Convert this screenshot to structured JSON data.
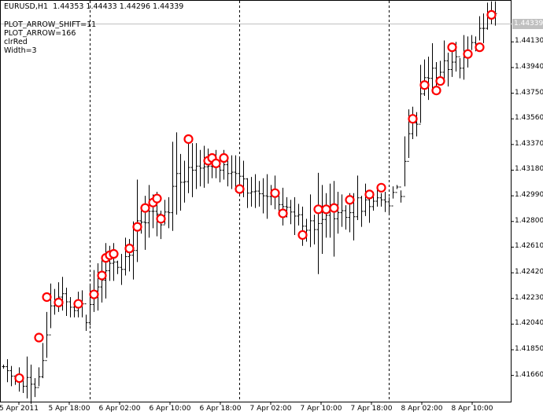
{
  "chart": {
    "symbol": "EURUSD,H1",
    "ohlc": "1.44353 1.44433 1.44296 1.44339",
    "current_price": "1.44339",
    "params": [
      "PLOT_ARROW_SHIFT=11",
      "PLOT_ARROW=166",
      "clrRed",
      "Width=3"
    ],
    "colors": {
      "background": "#ffffff",
      "bars": "#000000",
      "arrows": "#ff0000",
      "grid": "#000000",
      "price_line": "#c0c0c0"
    }
  },
  "chart_data": {
    "type": "ohlc",
    "title": "EURUSD,H1",
    "y_ticks": [
      "1.44130",
      "1.43940",
      "1.43750",
      "1.43560",
      "1.43370",
      "1.43180",
      "1.42990",
      "1.42800",
      "1.42610",
      "1.42420",
      "1.42230",
      "1.42040",
      "1.41850",
      "1.41660"
    ],
    "x_ticks": [
      "5 Apr 2011",
      "5 Apr 18:00",
      "6 Apr 02:00",
      "6 Apr 10:00",
      "6 Apr 18:00",
      "7 Apr 02:00",
      "7 Apr 10:00",
      "7 Apr 18:00",
      "8 Apr 02:00",
      "8 Apr 10:00"
    ],
    "ylim": [
      1.4146,
      1.4444
    ],
    "day_separators": [
      "6 Apr 2011",
      "7 Apr 2011",
      "8 Apr 2011"
    ],
    "bars_high": [
      1.4174,
      1.4178,
      1.4173,
      1.4166,
      1.4172,
      1.4163,
      1.418,
      1.4174,
      1.4164,
      1.4172,
      1.419,
      1.4213,
      1.4234,
      1.423,
      1.4235,
      1.4239,
      1.4231,
      1.4224,
      1.4219,
      1.4228,
      1.4229,
      1.4211,
      1.4234,
      1.4244,
      1.4249,
      1.4253,
      1.4264,
      1.4262,
      1.4264,
      1.4251,
      1.4256,
      1.4268,
      1.4267,
      1.428,
      1.4311,
      1.4288,
      1.4299,
      1.4307,
      1.43,
      1.4302,
      1.4288,
      1.4296,
      1.4298,
      1.4339,
      1.4346,
      1.433,
      1.4325,
      1.4339,
      1.4338,
      1.4338,
      1.4333,
      1.4336,
      1.4334,
      1.4329,
      1.4333,
      1.4327,
      1.4333,
      1.4325,
      1.4329,
      1.4329,
      1.4327,
      1.4325,
      1.4312,
      1.4313,
      1.4315,
      1.431,
      1.4312,
      1.4315,
      1.4307,
      1.4314,
      1.4299,
      1.4305,
      1.4298,
      1.4296,
      1.4298,
      1.4293,
      1.4291,
      1.4282,
      1.43,
      1.4285,
      1.4316,
      1.4307,
      1.4301,
      1.4308,
      1.431,
      1.4302,
      1.43,
      1.4292,
      1.4301,
      1.4301,
      1.4314,
      1.4299,
      1.4308,
      1.4303,
      1.4302,
      1.4304,
      1.4301,
      1.4302,
      1.4298,
      1.4306,
      1.4307,
      1.4303,
      1.4343,
      1.4363,
      1.4365,
      1.4361,
      1.4396,
      1.44,
      1.4402,
      1.4412,
      1.4398,
      1.4399,
      1.4414,
      1.4405,
      1.4409,
      1.4413,
      1.4401,
      1.4418,
      1.4417,
      1.4418,
      1.4417,
      1.4432,
      1.4434,
      1.4442,
      1.4443,
      1.4443
    ],
    "bars_low": [
      1.4171,
      1.4161,
      1.4158,
      1.4159,
      1.4154,
      1.4153,
      1.4149,
      1.4145,
      1.415,
      1.4158,
      1.4164,
      1.4179,
      1.4201,
      1.4211,
      1.4213,
      1.4214,
      1.421,
      1.4209,
      1.4209,
      1.4209,
      1.4209,
      1.4199,
      1.4203,
      1.4213,
      1.4214,
      1.422,
      1.4223,
      1.4236,
      1.4236,
      1.4241,
      1.4233,
      1.424,
      1.4243,
      1.4237,
      1.425,
      1.4271,
      1.4259,
      1.4268,
      1.4275,
      1.4269,
      1.4267,
      1.4278,
      1.4275,
      1.4273,
      1.4285,
      1.4288,
      1.4294,
      1.4301,
      1.4298,
      1.4304,
      1.4306,
      1.4305,
      1.4308,
      1.4312,
      1.4312,
      1.4309,
      1.4311,
      1.4306,
      1.4304,
      1.4302,
      1.43,
      1.4298,
      1.429,
      1.4291,
      1.429,
      1.4291,
      1.4286,
      1.4282,
      1.4292,
      1.4289,
      1.4286,
      1.4277,
      1.4283,
      1.4278,
      1.427,
      1.4277,
      1.4262,
      1.4265,
      1.4261,
      1.4263,
      1.4241,
      1.4256,
      1.4268,
      1.4268,
      1.4254,
      1.4271,
      1.4276,
      1.4274,
      1.4272,
      1.4266,
      1.4281,
      1.4276,
      1.4284,
      1.4279,
      1.4288,
      1.4291,
      1.4291,
      1.4287,
      1.4285,
      1.4297,
      1.4304,
      1.4294,
      1.4306,
      1.4327,
      1.4341,
      1.4343,
      1.4353,
      1.4373,
      1.437,
      1.4375,
      1.4375,
      1.4382,
      1.4384,
      1.438,
      1.4387,
      1.4391,
      1.4386,
      1.4385,
      1.4394,
      1.4407,
      1.4406,
      1.4414,
      1.4412,
      1.4422,
      1.4426,
      1.4425
    ],
    "arrows": [
      1.4164,
      1.4194,
      1.4224,
      1.422,
      1.4219,
      1.4226,
      1.424,
      1.4253,
      1.4255,
      1.4256,
      1.426,
      1.4276,
      1.429,
      1.4294,
      1.4297,
      1.4282,
      1.4341,
      1.4325,
      1.4327,
      1.4323,
      1.4327,
      1.4304,
      1.4301,
      1.4286,
      1.427,
      1.4289,
      1.4289,
      1.429,
      1.4296,
      1.43,
      1.4305,
      1.4356,
      1.4381,
      1.4377,
      1.4384,
      1.4409,
      1.4404,
      1.4409,
      1.4433
    ]
  },
  "axes": {
    "y_labels": [
      "1.44130",
      "1.43940",
      "1.43750",
      "1.43560",
      "1.43370",
      "1.43180",
      "1.42990",
      "1.42800",
      "1.42610",
      "1.42420",
      "1.42230",
      "1.42040",
      "1.41850",
      "1.41660"
    ],
    "x_labels": [
      "5 Apr 2011",
      "5 Apr 18:00",
      "6 Apr 02:00",
      "6 Apr 10:00",
      "6 Apr 18:00",
      "7 Apr 02:00",
      "7 Apr 10:00",
      "7 Apr 18:00",
      "8 Apr 02:00",
      "8 Apr 10:00"
    ]
  }
}
